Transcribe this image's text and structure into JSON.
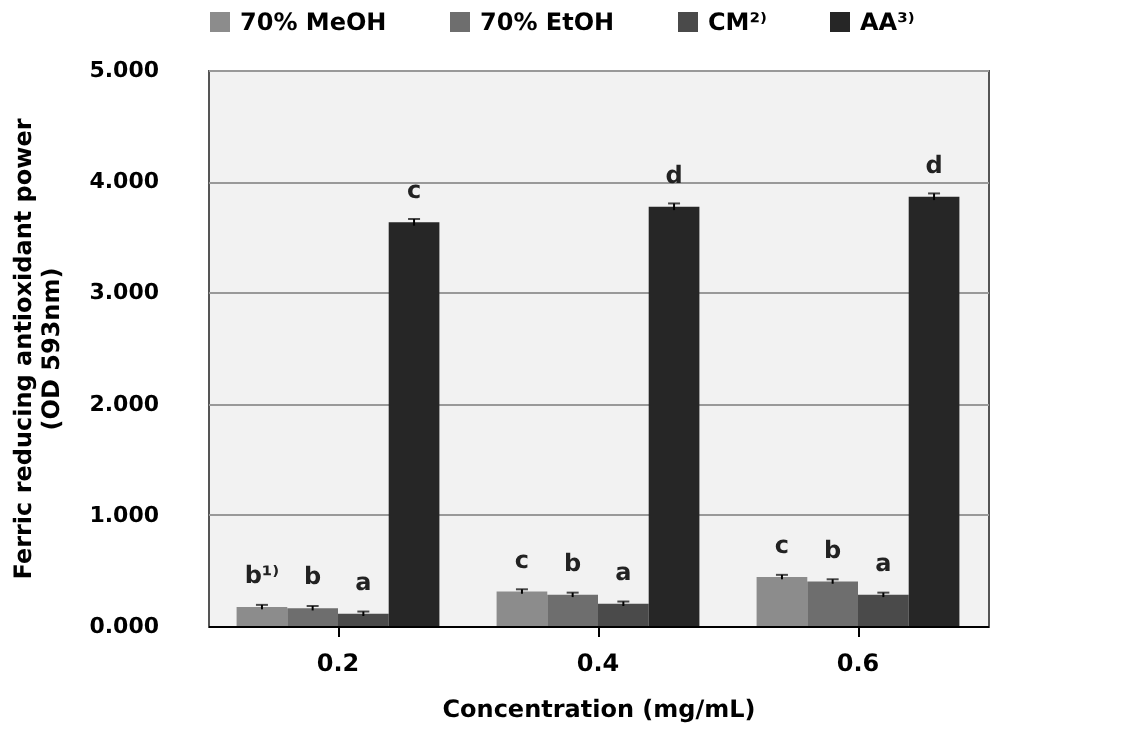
{
  "chart_data": {
    "type": "bar",
    "categories": [
      "0.2",
      "0.4",
      "0.6"
    ],
    "series": [
      {
        "name": "70% MeOH",
        "color": "#8c8c8c",
        "values": [
          0.17,
          0.31,
          0.44
        ],
        "errors": [
          0.02,
          0.02,
          0.02
        ],
        "value_labels": [
          "b¹⁾",
          "c",
          "c"
        ]
      },
      {
        "name": "70% EtOH",
        "color": "#6e6e6e",
        "values": [
          0.16,
          0.28,
          0.4
        ],
        "errors": [
          0.02,
          0.02,
          0.02
        ],
        "value_labels": [
          "b",
          "b",
          "b"
        ]
      },
      {
        "name": "CM²⁾",
        "color": "#4a4a4a",
        "values": [
          0.11,
          0.2,
          0.28
        ],
        "errors": [
          0.02,
          0.02,
          0.02
        ],
        "value_labels": [
          "a",
          "a",
          "a"
        ]
      },
      {
        "name": "AA³⁾",
        "color": "#262626",
        "values": [
          3.63,
          3.77,
          3.86
        ],
        "errors": [
          0.03,
          0.03,
          0.03
        ],
        "value_labels": [
          "c",
          "d",
          "d"
        ]
      }
    ],
    "xlabel": "Concentration (mg/mL)",
    "ylabel": "Ferric reducing antioxidant power\n(OD 593nm)",
    "ylim": [
      0,
      5
    ],
    "yticks": [
      {
        "value": 0,
        "label": "0.000"
      },
      {
        "value": 1,
        "label": "1.000"
      },
      {
        "value": 2,
        "label": "2.000"
      },
      {
        "value": 3,
        "label": "3.000"
      },
      {
        "value": 4,
        "label": "4.000"
      },
      {
        "value": 5,
        "label": "5.000"
      }
    ],
    "grid": "y",
    "legend": "top"
  }
}
